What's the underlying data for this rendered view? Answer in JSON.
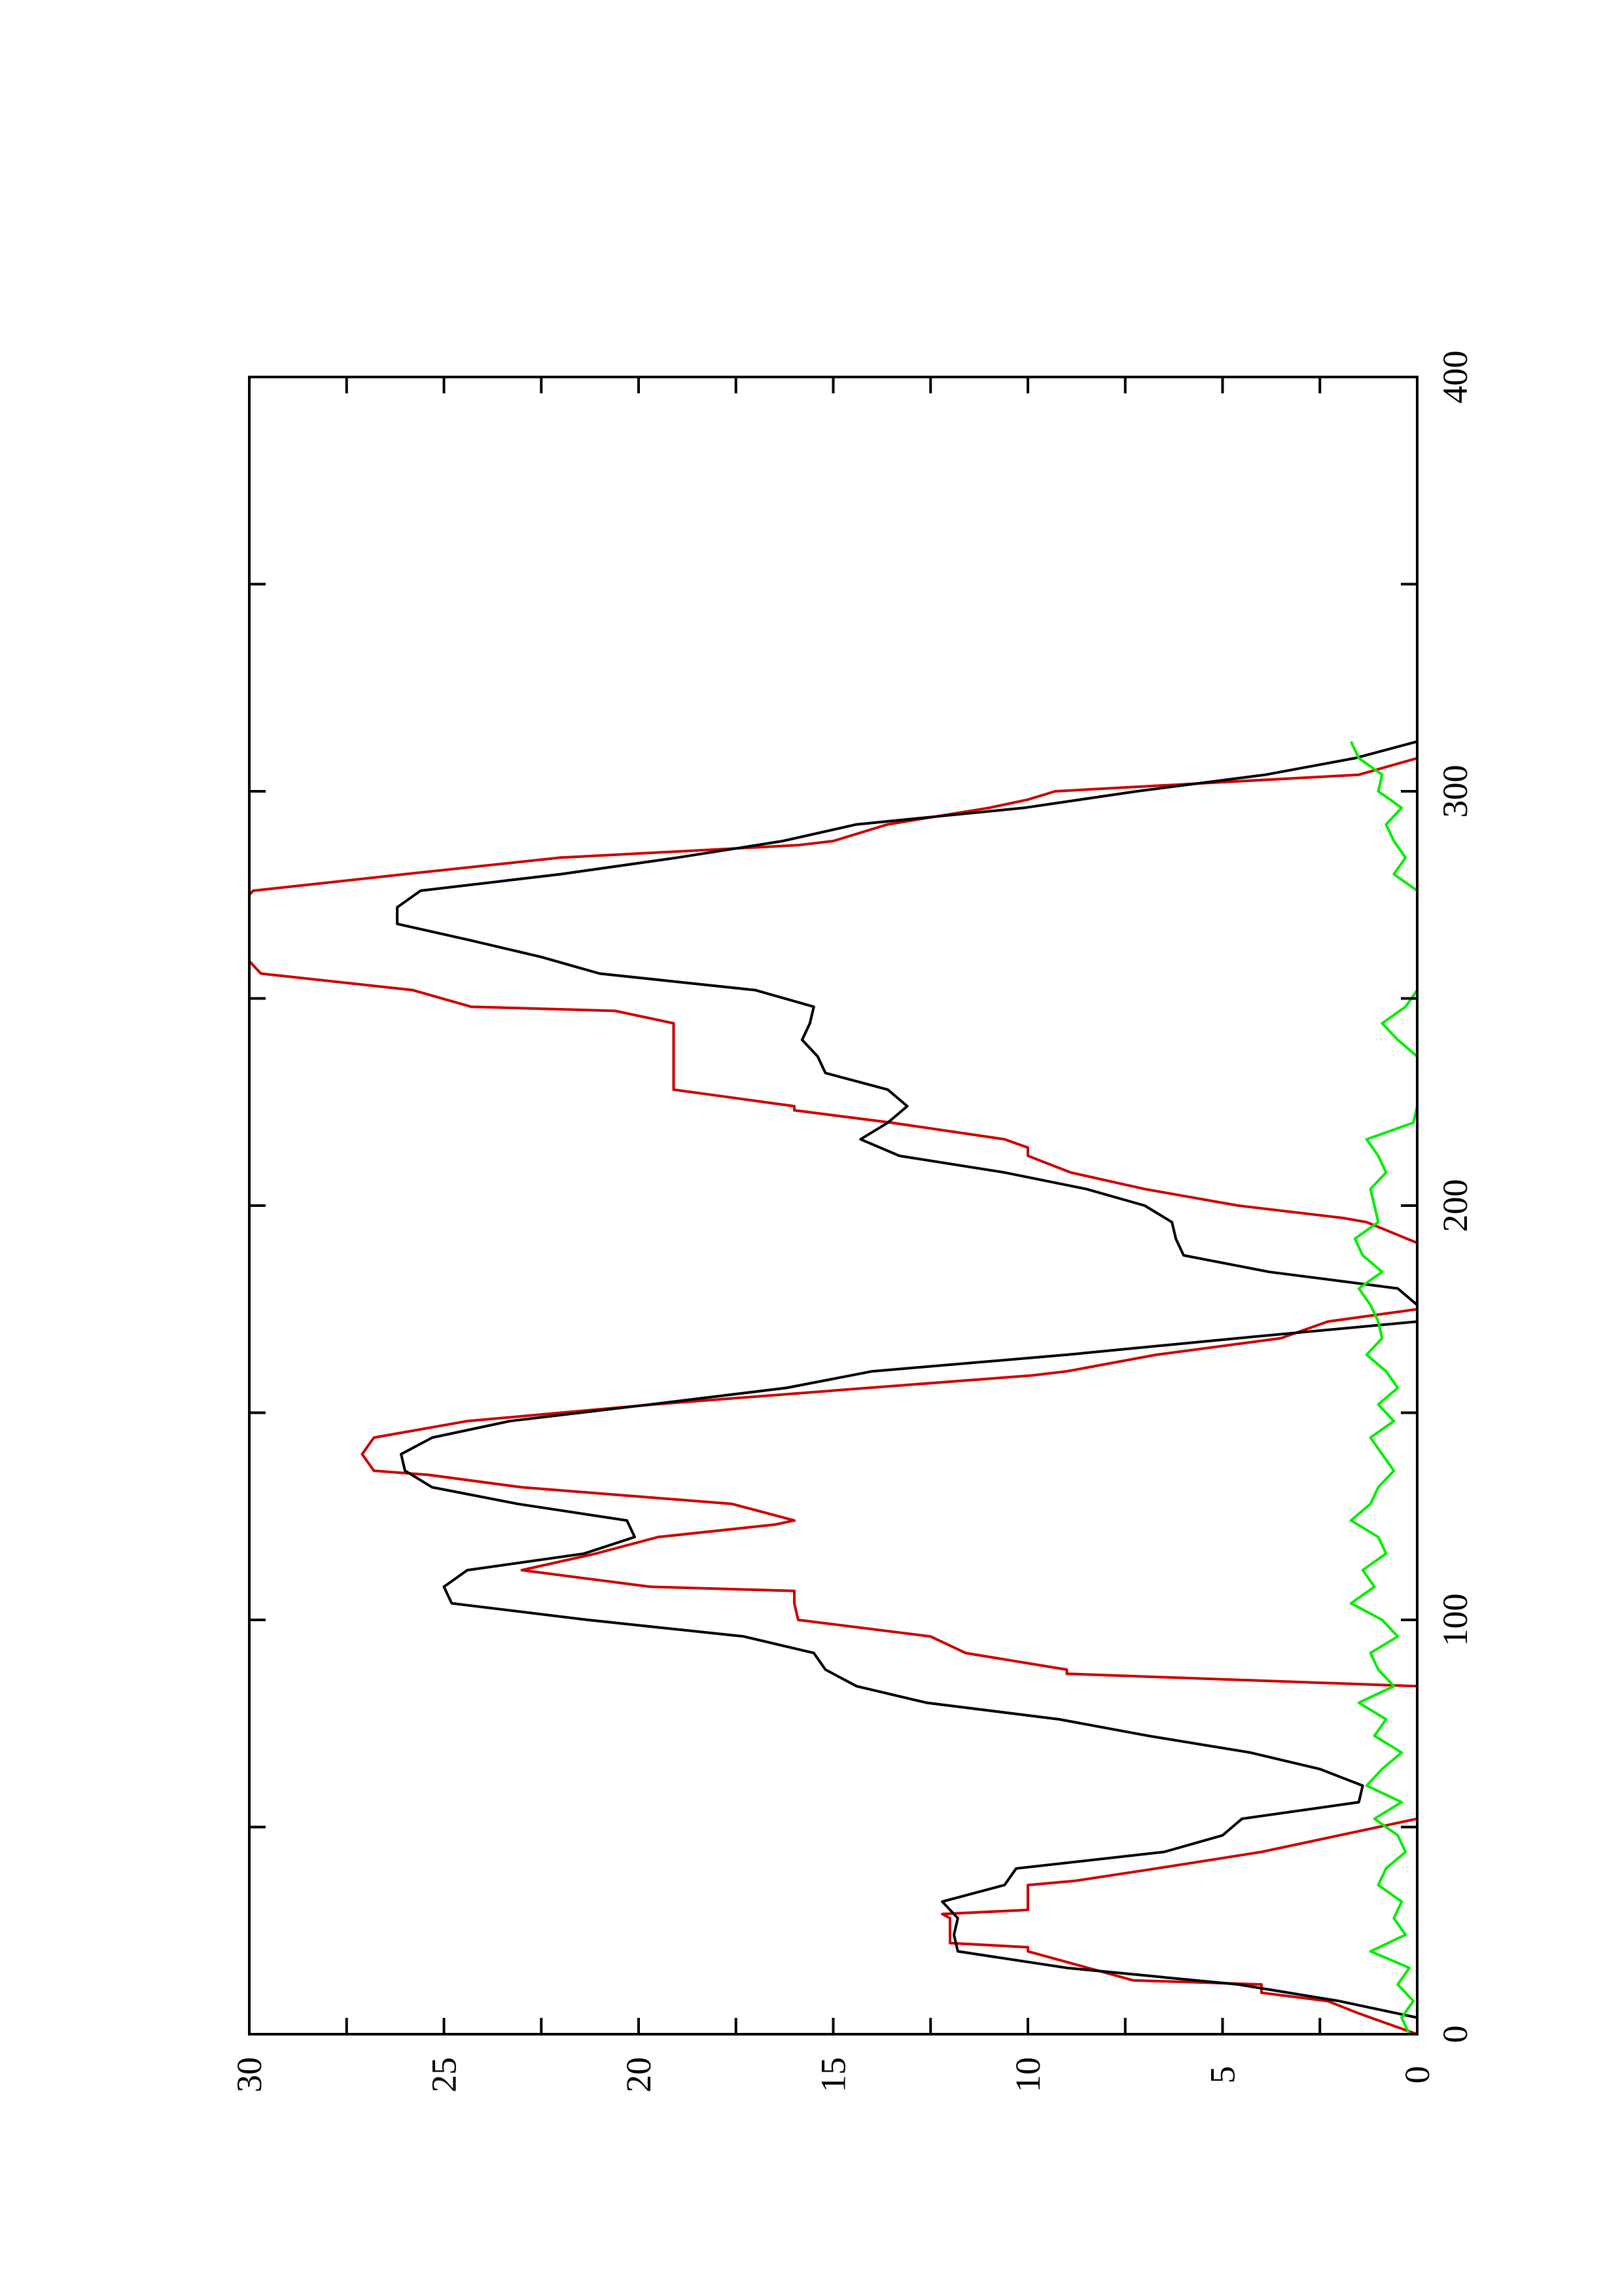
{
  "chart_data": {
    "type": "line",
    "orientation": "rotated-90-counterclockwise",
    "title": "",
    "xlabel": "",
    "ylabel": "",
    "xlim": [
      0,
      400
    ],
    "ylim": [
      0,
      30
    ],
    "x_ticks": [
      0,
      100,
      200,
      300,
      400
    ],
    "y_ticks": [
      0,
      5,
      10,
      15,
      20,
      25,
      30
    ],
    "x_tick_labels": [
      "0",
      "100",
      "200",
      "300",
      "400"
    ],
    "y_tick_labels": [
      "0",
      "5",
      "10",
      "15",
      "20",
      "25",
      "30"
    ],
    "grid": false,
    "legend": "none",
    "series": [
      {
        "color": "#cc0000",
        "x": [
          0,
          3,
          5,
          8,
          10,
          11,
          12,
          13,
          20,
          21,
          22,
          28,
          29,
          30,
          36,
          37,
          40,
          44,
          48,
          52,
          56,
          60,
          64,
          67,
          68,
          72,
          76,
          80,
          84,
          87,
          88,
          92,
          96,
          100,
          104,
          107,
          108,
          112,
          116,
          120,
          123,
          124,
          128,
          132,
          135,
          136,
          140,
          144,
          148,
          152,
          156,
          159,
          160,
          164,
          168,
          172,
          175,
          176,
          180,
          183,
          184,
          190,
          191,
          196,
          197,
          200,
          204,
          208,
          212,
          214,
          216,
          220,
          223,
          224,
          228,
          232,
          236,
          240,
          244,
          247,
          248,
          252,
          256,
          259,
          260,
          264,
          268,
          272,
          275,
          276,
          280,
          284,
          287,
          288,
          292,
          296,
          298,
          300,
          304,
          308
        ],
        "y": [
          0.0,
          0.9,
          1.5,
          2.3,
          4.0,
          4.0,
          4.0,
          7.3,
          10.0,
          10.0,
          12.0,
          12.0,
          12.2,
          10.0,
          10.0,
          8.8,
          6.7,
          4.0,
          2.0,
          0.0,
          0.0,
          0.0,
          0.0,
          0.0,
          0.0,
          0.0,
          0.0,
          0.0,
          0.0,
          9.0,
          9.0,
          11.6,
          12.5,
          15.9,
          16.0,
          16.0,
          19.7,
          23.0,
          21.1,
          19.5,
          16.5,
          16.0,
          17.6,
          23.0,
          25.4,
          26.8,
          27.1,
          26.8,
          24.4,
          19.6,
          14.1,
          9.9,
          9.0,
          6.7,
          3.5,
          2.3,
          0.0,
          0.0,
          0.0,
          0.0,
          0.0,
          0.0,
          0.0,
          1.3,
          1.9,
          4.6,
          7.0,
          8.9,
          10.0,
          10.0,
          10.6,
          13.5,
          16.0,
          16.0,
          19.1,
          19.1,
          19.1,
          19.1,
          19.1,
          20.6,
          24.3,
          25.8,
          29.7,
          30.0,
          30.0,
          30.0,
          30.0,
          30.0,
          30.0,
          29.9,
          26.0,
          22.0,
          15.9,
          15.0,
          13.6,
          11.0,
          10.0,
          9.3,
          1.5,
          0.0
        ]
      },
      {
        "color": "#000000",
        "x": [
          0,
          4,
          8,
          12,
          16,
          20,
          24,
          28,
          32,
          36,
          40,
          44,
          48,
          52,
          56,
          60,
          64,
          68,
          72,
          76,
          80,
          84,
          88,
          92,
          96,
          100,
          104,
          108,
          112,
          116,
          120,
          124,
          128,
          132,
          136,
          140,
          144,
          148,
          152,
          156,
          160,
          164,
          168,
          172,
          176,
          180,
          184,
          188,
          192,
          196,
          200,
          204,
          208,
          212,
          216,
          220,
          224,
          228,
          232,
          236,
          240,
          244,
          248,
          252,
          256,
          260,
          264,
          268,
          272,
          276,
          280,
          284,
          288,
          292,
          296,
          300,
          304,
          308,
          312
        ],
        "y": [
          0.0,
          0.0,
          2.0,
          4.6,
          9.0,
          11.8,
          11.9,
          11.8,
          12.2,
          10.6,
          10.3,
          6.5,
          5.0,
          4.5,
          1.5,
          1.4,
          2.5,
          4.3,
          6.9,
          9.2,
          12.6,
          14.4,
          15.2,
          15.5,
          17.3,
          21.3,
          24.8,
          25.0,
          24.4,
          21.4,
          20.1,
          20.3,
          23.1,
          25.3,
          26.0,
          26.1,
          25.3,
          23.3,
          19.7,
          16.2,
          14.0,
          9.0,
          4.6,
          0.0,
          0.0,
          0.5,
          3.8,
          6.0,
          6.2,
          6.3,
          7.0,
          8.5,
          10.6,
          13.3,
          14.3,
          13.6,
          13.1,
          13.6,
          15.2,
          15.4,
          15.8,
          15.6,
          15.5,
          17.0,
          21.0,
          22.5,
          24.3,
          26.2,
          26.2,
          25.6,
          22.0,
          19.0,
          16.3,
          14.4,
          10.1,
          7.2,
          3.9,
          1.6,
          0.0
        ]
      },
      {
        "color": "#00ee00",
        "x": [
          0,
          4,
          8,
          12,
          16,
          20,
          24,
          28,
          32,
          36,
          40,
          44,
          48,
          52,
          56,
          60,
          64,
          68,
          72,
          76,
          80,
          84,
          88,
          92,
          96,
          100,
          104,
          108,
          112,
          116,
          120,
          124,
          128,
          132,
          136,
          140,
          144,
          148,
          152,
          156,
          160,
          164,
          168,
          172,
          176,
          180,
          184,
          188,
          192,
          196,
          200,
          204,
          208,
          212,
          216,
          220,
          224,
          228,
          232,
          236,
          240,
          244,
          248,
          252,
          256,
          260,
          264,
          268,
          272,
          276,
          280,
          284,
          288,
          292,
          296,
          300,
          304,
          308,
          312
        ],
        "y": [
          0.2,
          0.4,
          0.1,
          0.5,
          0.2,
          1.2,
          0.3,
          0.6,
          0.4,
          1.0,
          0.8,
          0.3,
          0.5,
          1.1,
          0.4,
          1.3,
          0.9,
          0.4,
          1.1,
          0.8,
          1.5,
          0.6,
          1.0,
          1.2,
          0.5,
          0.9,
          1.7,
          1.1,
          1.4,
          0.8,
          1.0,
          1.7,
          1.2,
          1.0,
          0.6,
          0.9,
          1.2,
          0.6,
          1.0,
          0.5,
          0.8,
          1.3,
          0.9,
          1.0,
          1.2,
          1.5,
          0.9,
          1.4,
          1.6,
          1.0,
          1.1,
          1.2,
          0.8,
          1.0,
          1.3,
          0.1,
          0.0,
          0.0,
          0.0,
          0.0,
          0.5,
          0.9,
          0.3,
          0.0,
          0.0,
          0.0,
          0.0,
          0.0,
          0.0,
          0.0,
          0.6,
          0.3,
          0.6,
          0.8,
          0.4,
          1.0,
          0.9,
          1.5,
          1.7
        ]
      }
    ]
  }
}
